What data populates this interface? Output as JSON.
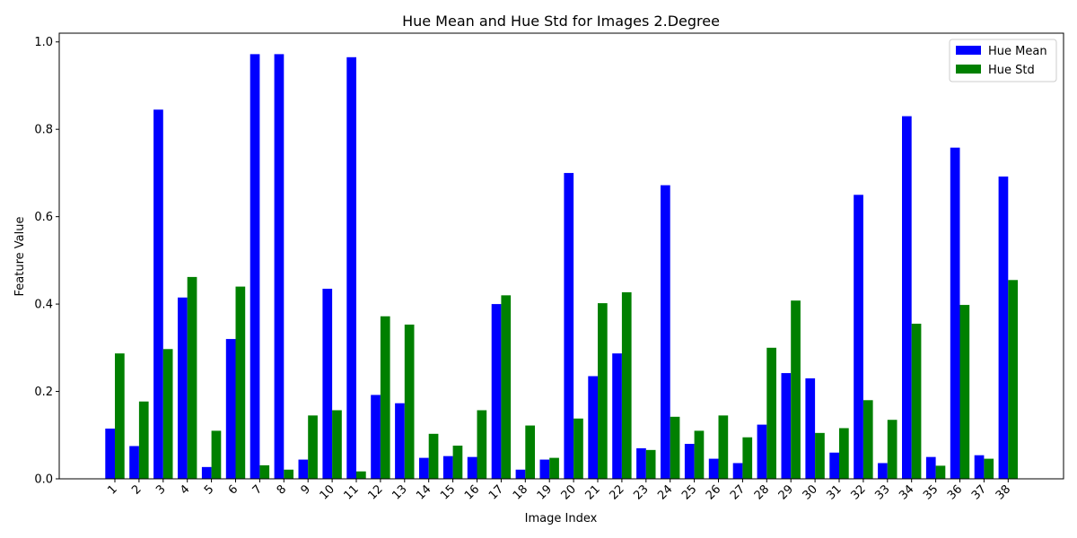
{
  "chart_data": {
    "type": "bar",
    "title": "Hue Mean and Hue Std for Images 2.Degree",
    "xlabel": "Image Index",
    "ylabel": "Feature Value",
    "ylim": [
      0,
      1.02
    ],
    "yticks": [
      "0.0",
      "0.2",
      "0.4",
      "0.6",
      "0.8",
      "1.0"
    ],
    "ytick_values": [
      0,
      0.2,
      0.4,
      0.6,
      0.8,
      1.0
    ],
    "categories": [
      "1",
      "2",
      "3",
      "4",
      "5",
      "6",
      "7",
      "8",
      "9",
      "10",
      "11",
      "12",
      "13",
      "14",
      "15",
      "16",
      "17",
      "18",
      "19",
      "20",
      "21",
      "22",
      "23",
      "24",
      "25",
      "26",
      "27",
      "28",
      "29",
      "30",
      "31",
      "32",
      "33",
      "34",
      "35",
      "36",
      "37",
      "38"
    ],
    "series": [
      {
        "name": "Hue Mean",
        "color": "#0000ff",
        "values": [
          0.115,
          0.075,
          0.845,
          0.415,
          0.027,
          0.32,
          0.972,
          0.972,
          0.044,
          0.435,
          0.965,
          0.192,
          0.173,
          0.048,
          0.052,
          0.05,
          0.4,
          0.021,
          0.044,
          0.7,
          0.235,
          0.287,
          0.07,
          0.672,
          0.08,
          0.046,
          0.036,
          0.124,
          0.242,
          0.23,
          0.06,
          0.65,
          0.036,
          0.83,
          0.05,
          0.758,
          0.054,
          0.692
        ]
      },
      {
        "name": "Hue Std",
        "color": "#008000",
        "values": [
          0.287,
          0.177,
          0.297,
          0.462,
          0.11,
          0.44,
          0.031,
          0.021,
          0.145,
          0.157,
          0.017,
          0.372,
          0.353,
          0.103,
          0.076,
          0.157,
          0.42,
          0.122,
          0.048,
          0.138,
          0.402,
          0.427,
          0.066,
          0.142,
          0.11,
          0.145,
          0.095,
          0.3,
          0.408,
          0.105,
          0.116,
          0.18,
          0.135,
          0.355,
          0.03,
          0.398,
          0.046,
          0.455
        ]
      }
    ],
    "legend_position": "top-right",
    "grid": false
  }
}
